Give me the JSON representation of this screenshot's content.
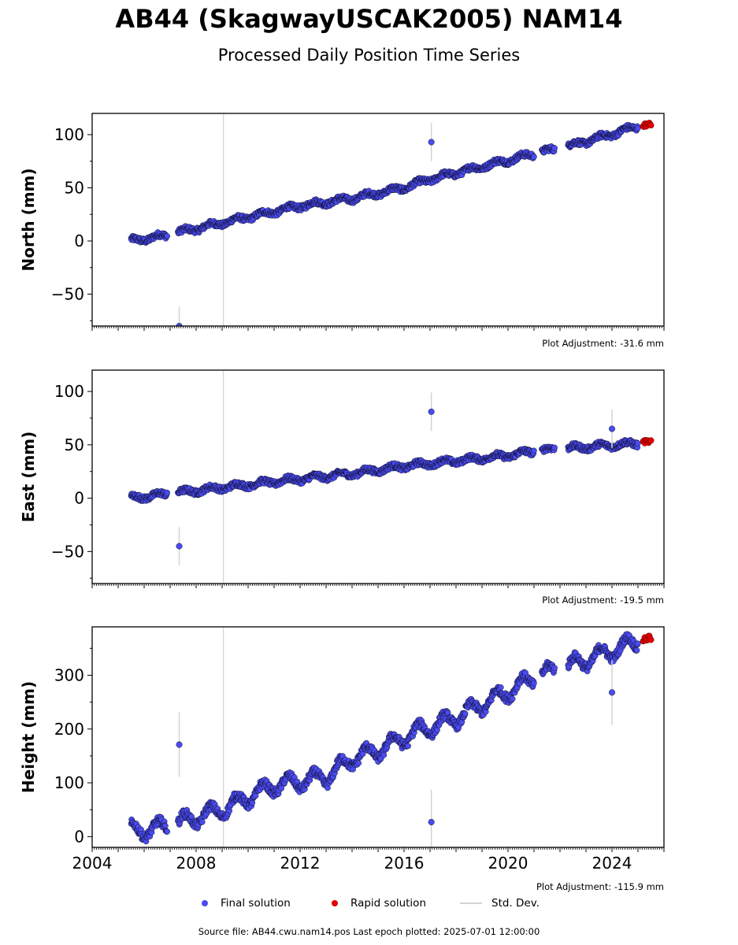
{
  "title": "AB44 (SkagwayUSCAK2005) NAM14",
  "subtitle": "Processed Daily Position Time Series",
  "legend": {
    "final": "Final solution",
    "rapid": "Rapid solution",
    "stddev": "Std. Dev."
  },
  "source_note": "Source file: AB44.cwu.nam14.pos  Last epoch plotted: 2025-07-01 12:00:00",
  "colors": {
    "final": "#4b4bf0",
    "rapid": "#e00000",
    "stddev": "#d3d3d3",
    "outline": "#000000"
  },
  "chart_data": [
    {
      "type": "scatter",
      "panel": "north",
      "ylabel": "North (mm)",
      "xlim": [
        2004,
        2026
      ],
      "ylim": [
        -80,
        120
      ],
      "yticks": [
        -50,
        0,
        50,
        100
      ],
      "yticklabels": [
        "−50",
        "0",
        "50",
        "100"
      ],
      "xticks": [
        2004,
        2008,
        2012,
        2016,
        2020,
        2024
      ],
      "xticklabels": [],
      "plot_adjustment": "Plot Adjustment: -31.6 mm",
      "series": [
        {
          "name": "Final solution",
          "trend": [
            [
              2005.5,
              0
            ],
            [
              2006.8,
              5
            ],
            [
              2007.3,
              8
            ],
            [
              2009.0,
              17
            ],
            [
              2012.0,
              33
            ],
            [
              2014.0,
              40
            ],
            [
              2016.0,
              50
            ],
            [
              2017.0,
              58
            ],
            [
              2019.0,
              70
            ],
            [
              2021.0,
              82
            ],
            [
              2022.0,
              87
            ],
            [
              2023.5,
              97
            ],
            [
              2025.3,
              110
            ]
          ],
          "gaps": [
            [
              2006.9,
              2007.3
            ],
            [
              2021.0,
              2021.3
            ],
            [
              2021.8,
              2022.3
            ]
          ],
          "outliers": [
            [
              2007.35,
              -80
            ],
            [
              2017.05,
              93
            ]
          ]
        },
        {
          "name": "Rapid solution",
          "trend": [
            [
              2025.0,
              108
            ],
            [
              2025.5,
              110
            ]
          ]
        }
      ]
    },
    {
      "type": "scatter",
      "panel": "east",
      "ylabel": "East (mm)",
      "xlim": [
        2004,
        2026
      ],
      "ylim": [
        -80,
        120
      ],
      "yticks": [
        -50,
        0,
        50,
        100
      ],
      "yticklabels": [
        "−50",
        "0",
        "50",
        "100"
      ],
      "xticks": [
        2004,
        2008,
        2012,
        2016,
        2020,
        2024
      ],
      "xticklabels": [],
      "plot_adjustment": "Plot Adjustment: -19.5 mm",
      "series": [
        {
          "name": "Final solution",
          "trend": [
            [
              2005.5,
              0
            ],
            [
              2007.3,
              5
            ],
            [
              2009.0,
              10
            ],
            [
              2012.0,
              18
            ],
            [
              2014.0,
              23
            ],
            [
              2016.0,
              30
            ],
            [
              2018.0,
              35
            ],
            [
              2020.0,
              40
            ],
            [
              2021.0,
              44
            ],
            [
              2022.5,
              47
            ],
            [
              2025.3,
              52
            ]
          ],
          "gaps": [
            [
              2006.9,
              2007.3
            ],
            [
              2021.0,
              2021.3
            ],
            [
              2021.8,
              2022.3
            ]
          ],
          "outliers": [
            [
              2007.35,
              -45
            ],
            [
              2017.05,
              81
            ],
            [
              2024.0,
              65
            ]
          ]
        },
        {
          "name": "Rapid solution",
          "trend": [
            [
              2025.0,
              53
            ],
            [
              2025.5,
              53
            ]
          ]
        }
      ]
    },
    {
      "type": "scatter",
      "panel": "height",
      "ylabel": "Height (mm)",
      "xlabel": "",
      "xlim": [
        2004,
        2026
      ],
      "ylim": [
        -20,
        390
      ],
      "yticks": [
        0,
        100,
        200,
        300
      ],
      "yticklabels": [
        "0",
        "100",
        "200",
        "300"
      ],
      "xticks": [
        2004,
        2008,
        2012,
        2016,
        2020,
        2024
      ],
      "xticklabels": [
        "2004",
        "2008",
        "2012",
        "2016",
        "2020",
        "2024"
      ],
      "plot_adjustment": "Plot Adjustment: -115.9 mm",
      "series": [
        {
          "name": "Final solution",
          "trend": [
            [
              2005.5,
              10
            ],
            [
              2006.5,
              15
            ],
            [
              2007.3,
              25
            ],
            [
              2009.0,
              50
            ],
            [
              2011.0,
              95
            ],
            [
              2013.0,
              110
            ],
            [
              2014.0,
              145
            ],
            [
              2015.0,
              160
            ],
            [
              2016.5,
              195
            ],
            [
              2018.0,
              220
            ],
            [
              2020.0,
              270
            ],
            [
              2021.0,
              295
            ],
            [
              2022.5,
              320
            ],
            [
              2024.0,
              345
            ],
            [
              2025.3,
              370
            ]
          ],
          "gaps": [
            [
              2006.9,
              2007.3
            ],
            [
              2021.0,
              2021.3
            ],
            [
              2021.8,
              2022.3
            ]
          ],
          "outliers": [
            [
              2007.35,
              171
            ],
            [
              2017.05,
              27
            ],
            [
              2024.0,
              268
            ]
          ]
        },
        {
          "name": "Rapid solution",
          "trend": [
            [
              2025.0,
              365
            ],
            [
              2025.5,
              370
            ]
          ]
        }
      ]
    }
  ]
}
